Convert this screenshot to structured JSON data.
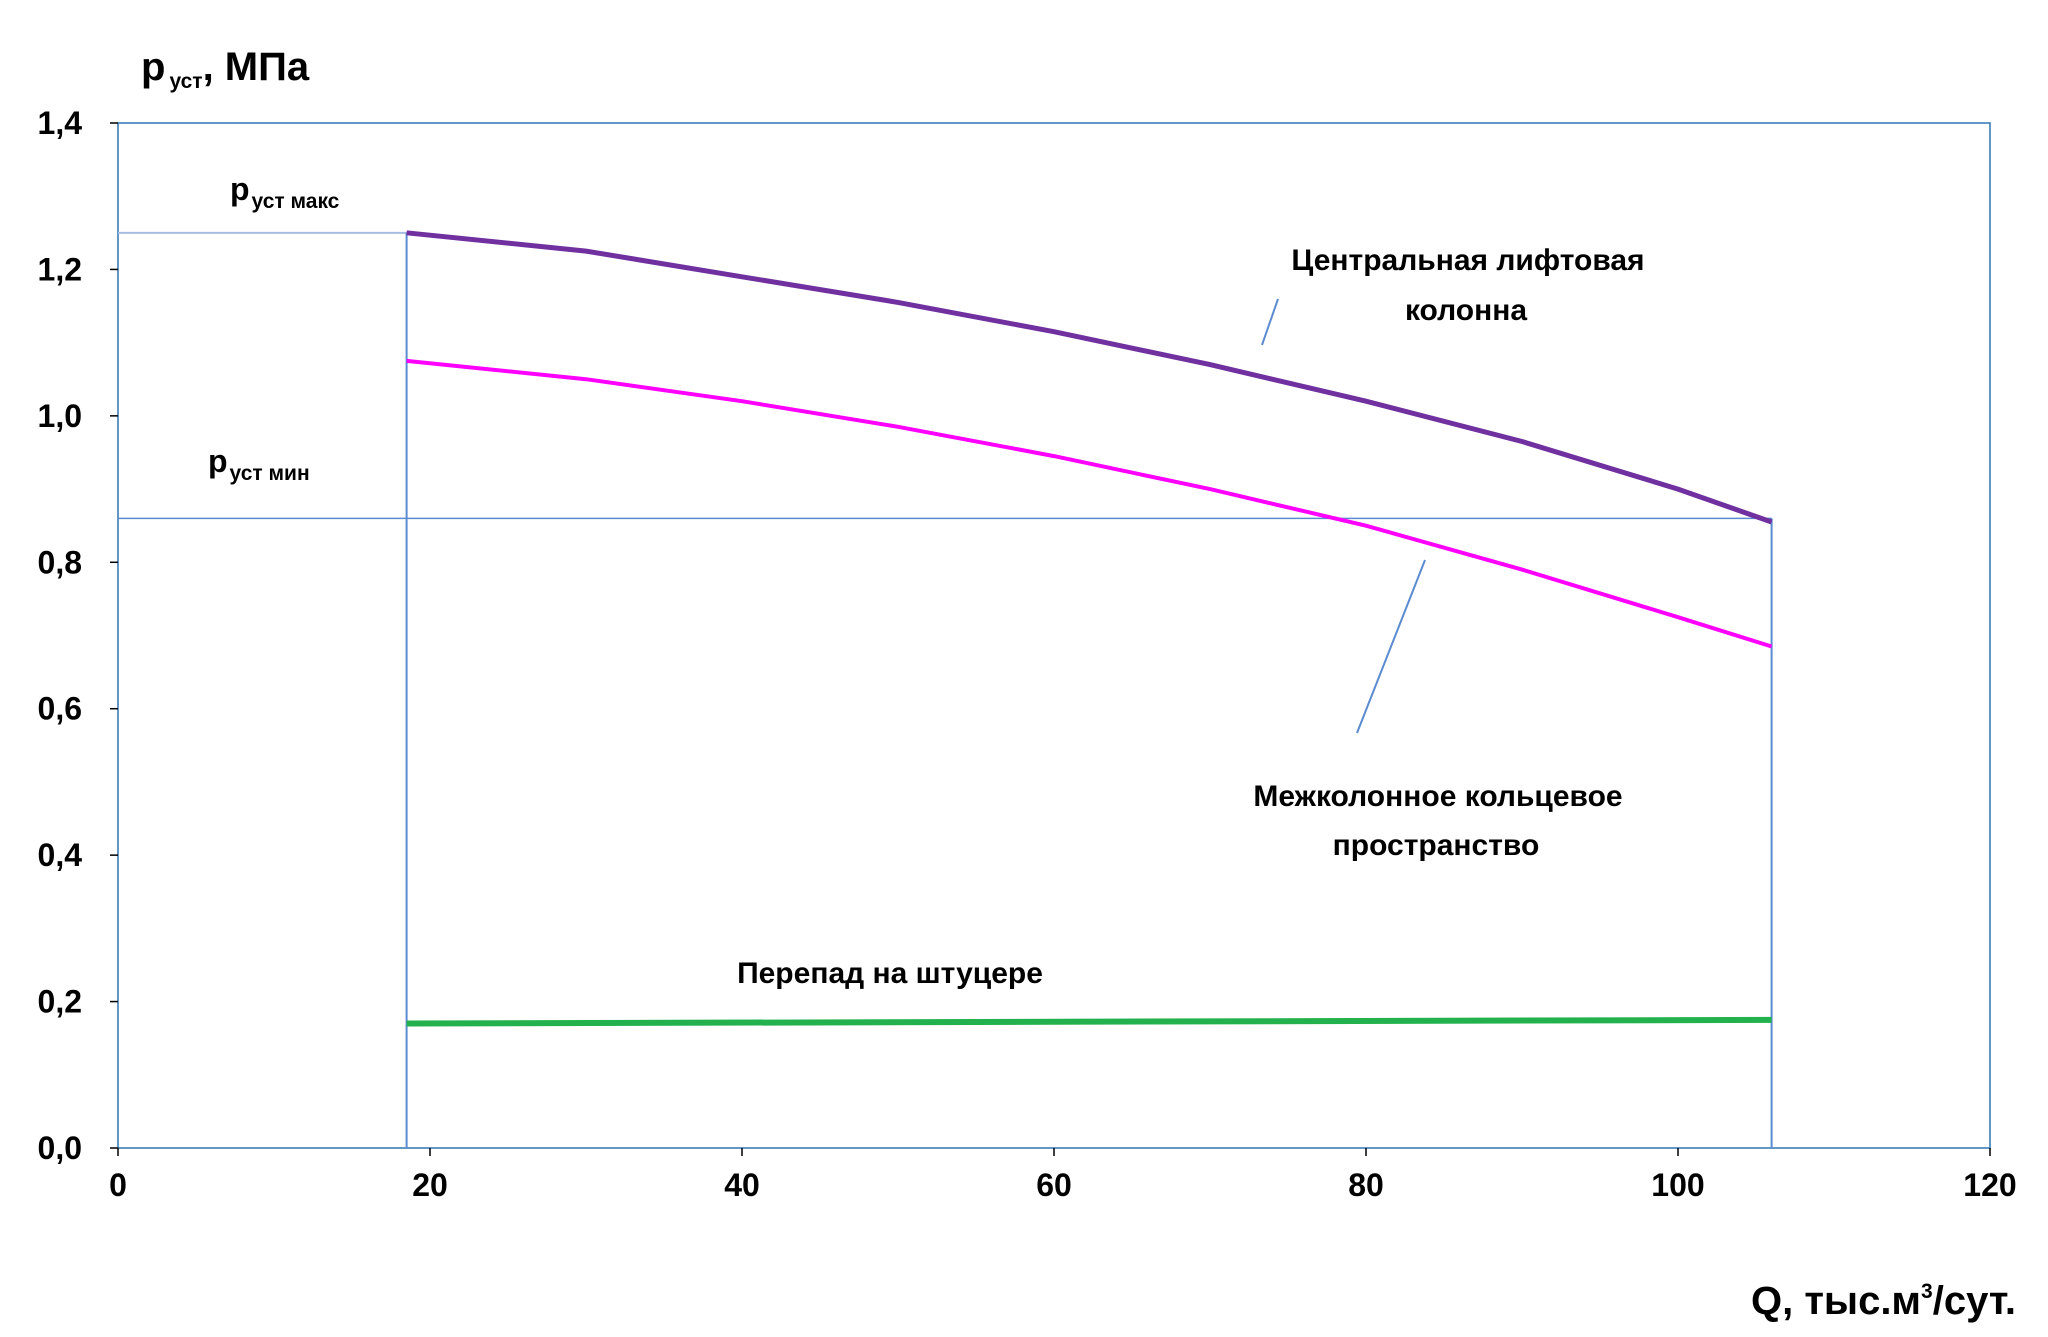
{
  "chart_data": {
    "type": "line",
    "xlabel_main": "Q, тыс.м",
    "xlabel_sup": "3",
    "xlabel_rest": "/сут.",
    "ylabel_main": "p",
    "ylabel_sub": "уст",
    "ylabel_unit": ", МПа",
    "xlim": [
      0,
      120
    ],
    "ylim": [
      0,
      1.4
    ],
    "x_ticks": [
      0,
      20,
      40,
      60,
      80,
      100,
      120
    ],
    "x_tick_labels": [
      "0",
      "20",
      "40",
      "60",
      "80",
      "100",
      "120"
    ],
    "y_ticks": [
      0,
      0.2,
      0.4,
      0.6,
      0.8,
      1.0,
      1.2,
      1.4
    ],
    "y_tick_labels": [
      "0,0",
      "0,2",
      "0,4",
      "0,6",
      "0,8",
      "1,0",
      "1,2",
      "1,4"
    ],
    "grid": false,
    "reference_lines": {
      "p_max": {
        "y": 1.25,
        "label_main": "p",
        "label_sub": "уст макс"
      },
      "p_min": {
        "y": 0.86,
        "label_main": "p",
        "label_sub": "уст мин"
      },
      "q_min": {
        "x": 18.5
      },
      "q_max": {
        "x": 106
      }
    },
    "series": [
      {
        "name_line1": "Центральная лифтовая",
        "name_line2": "колонна",
        "color": "#7030a0",
        "x": [
          18.5,
          30,
          40,
          50,
          60,
          70,
          80,
          90,
          100,
          106
        ],
        "y": [
          1.25,
          1.225,
          1.19,
          1.155,
          1.115,
          1.07,
          1.02,
          0.965,
          0.9,
          0.855
        ]
      },
      {
        "name_line1": "Межколонное кольцевое",
        "name_line2": "пространство",
        "color": "#ff00ff",
        "x": [
          18.5,
          30,
          40,
          50,
          60,
          70,
          80,
          90,
          100,
          106
        ],
        "y": [
          1.075,
          1.05,
          1.02,
          0.985,
          0.945,
          0.9,
          0.85,
          0.79,
          0.725,
          0.685
        ]
      },
      {
        "name_line1": "Перепад на штуцере",
        "name_line2": "",
        "color": "#22b14c",
        "x": [
          18.5,
          106
        ],
        "y": [
          0.17,
          0.175
        ]
      }
    ]
  }
}
